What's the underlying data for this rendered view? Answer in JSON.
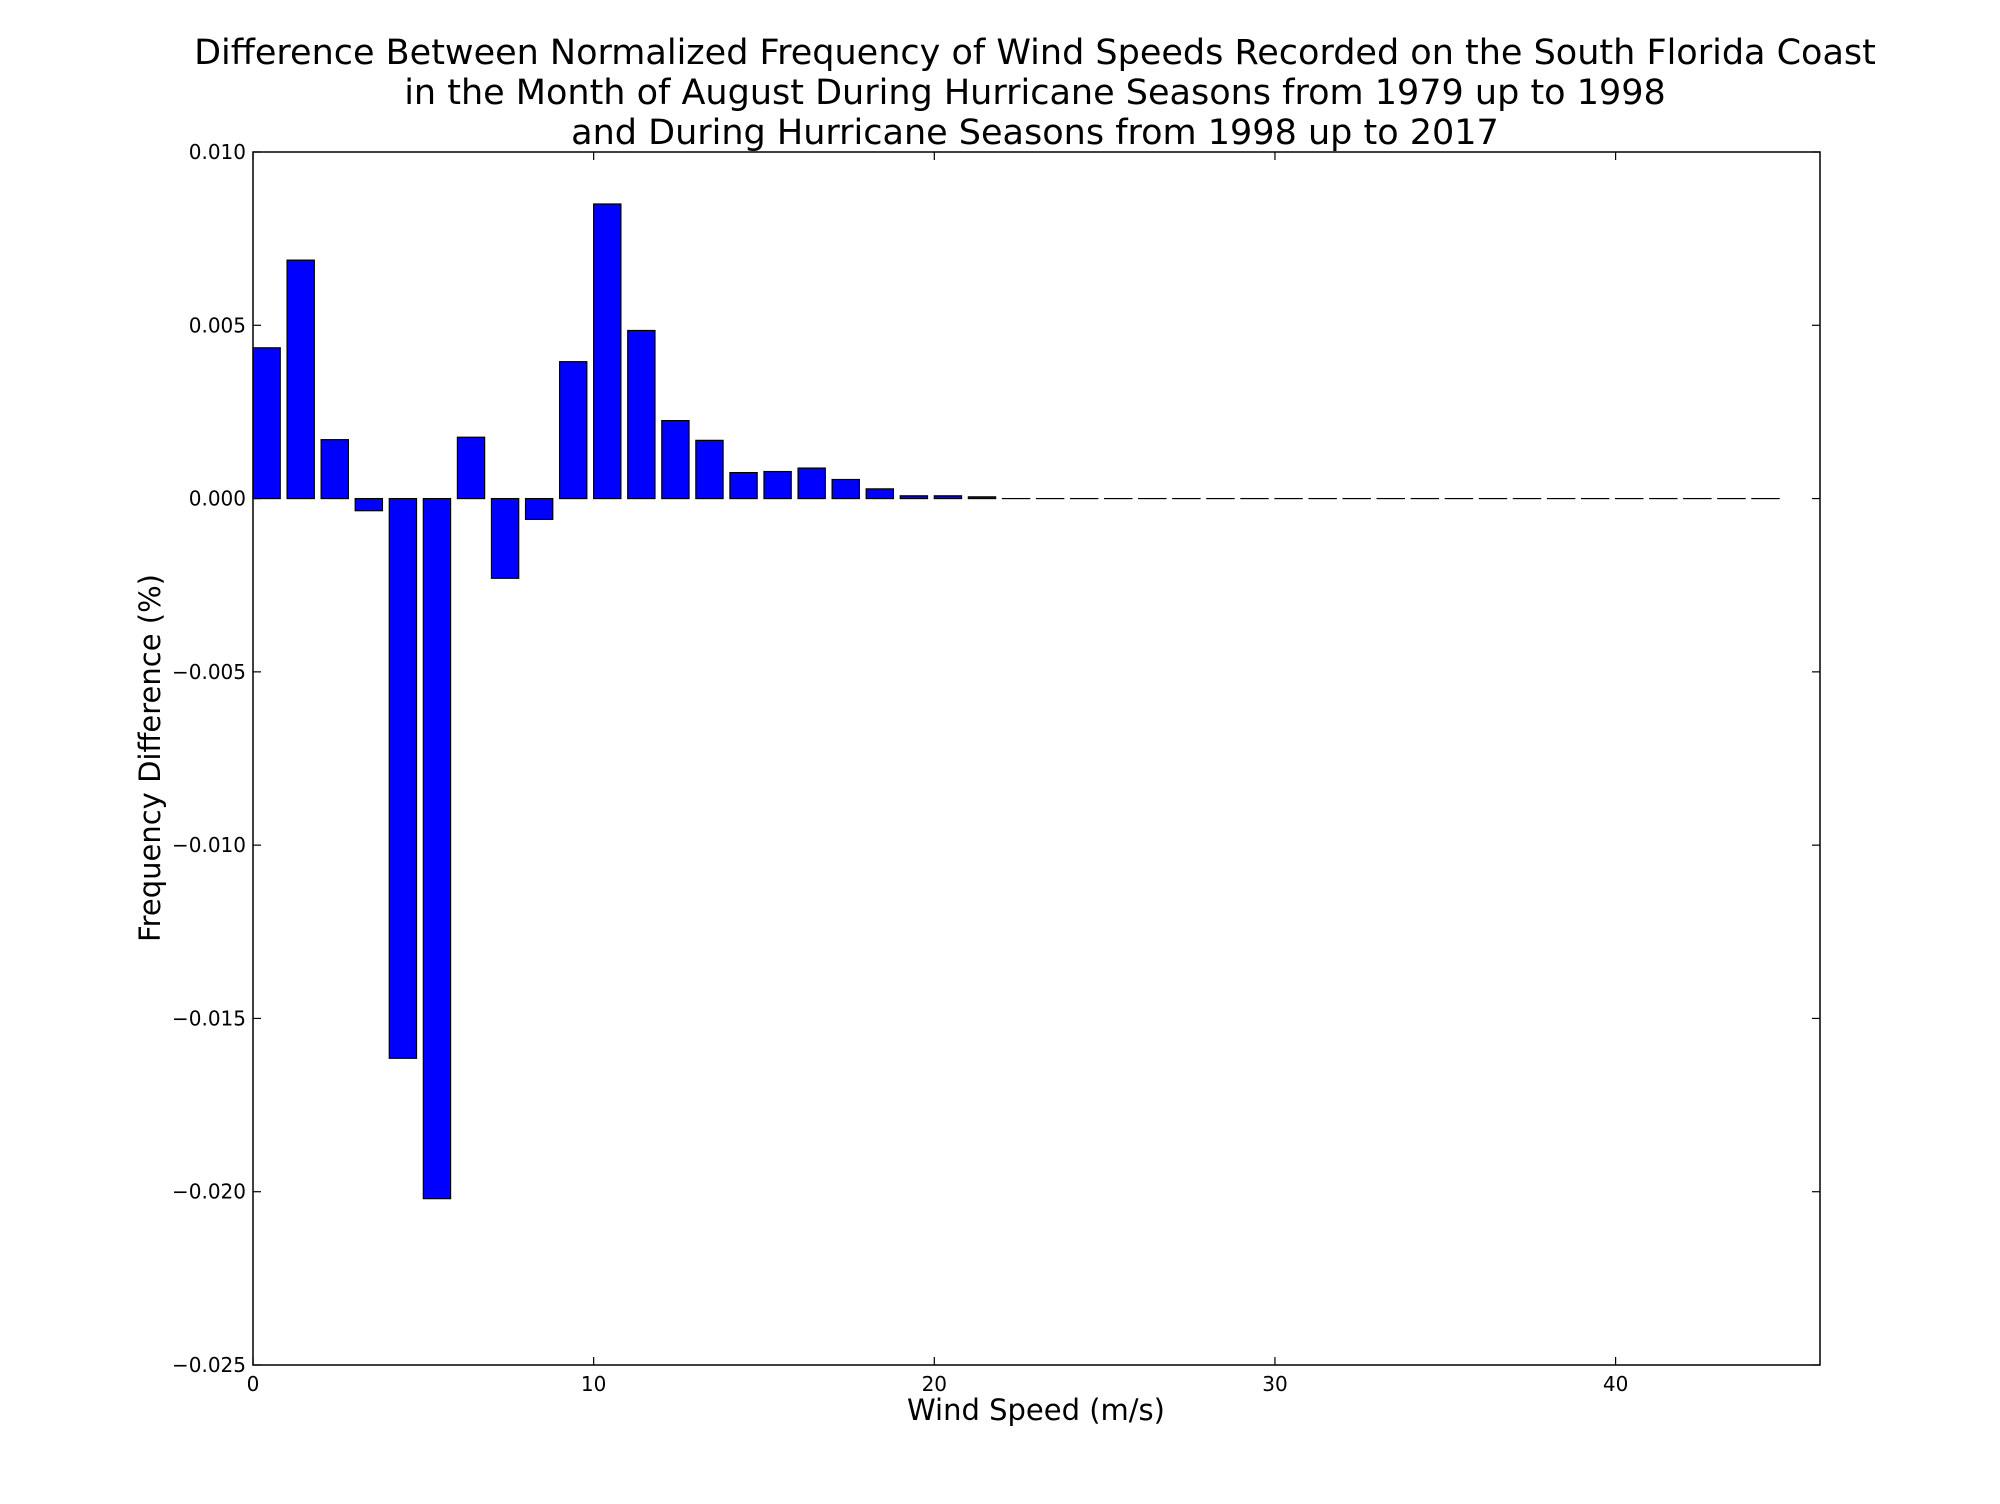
{
  "chart_data": {
    "type": "bar",
    "title": [
      "Difference Between Normalized Frequency of Wind Speeds Recorded on the South Florida Coast",
      "in the Month of August During Hurricane Seasons from 1979 up to 1998",
      "and During Hurricane Seasons from 1998 up to 2017"
    ],
    "xlabel": "Wind Speed (m/s)",
    "ylabel": "Frequency Difference (%)",
    "xlim": [
      0,
      46
    ],
    "ylim": [
      -0.025,
      0.01
    ],
    "xticks": [
      "0",
      "10",
      "20",
      "30",
      "40"
    ],
    "yticks": [
      "0.010",
      "0.005",
      "0.000",
      "−0.005",
      "−0.010",
      "−0.015",
      "−0.020",
      "−0.025"
    ],
    "grid": false,
    "bar_color": "#0000ff",
    "bar_edge_color": "#000000",
    "bar_width": 0.8,
    "x": [
      0,
      1,
      2,
      3,
      4,
      5,
      6,
      7,
      8,
      9,
      10,
      11,
      12,
      13,
      14,
      15,
      16,
      17,
      18,
      19,
      20,
      21,
      22,
      23,
      24,
      25,
      26,
      27,
      28,
      29,
      30,
      31,
      32,
      33,
      34,
      35,
      36,
      37,
      38,
      39,
      40,
      41,
      42,
      43,
      44
    ],
    "values": [
      0.00435,
      0.00688,
      0.0017,
      -0.00035,
      -0.01615,
      -0.0202,
      0.00177,
      -0.0023,
      -0.0006,
      0.00395,
      0.0085,
      0.00485,
      0.00225,
      0.00168,
      0.00075,
      0.00078,
      0.00088,
      0.00055,
      0.00028,
      8e-05,
      8e-05,
      5e-05,
      0,
      0,
      0,
      0,
      0,
      0,
      0,
      0,
      0,
      0,
      0,
      0,
      0,
      0,
      0,
      0,
      0,
      0,
      0,
      0,
      0,
      0,
      0
    ]
  }
}
